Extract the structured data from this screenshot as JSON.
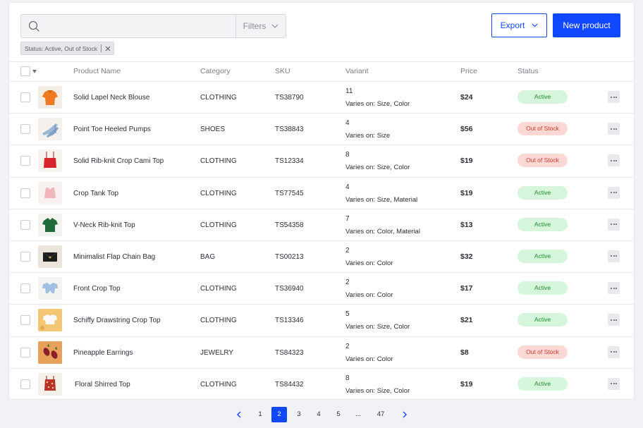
{
  "toolbar": {
    "search_value": "",
    "filters_label": "Filters",
    "active_filter": "Status: Active, Out of Stock",
    "export_label": "Export",
    "new_product_label": "New product"
  },
  "columns": {
    "name": "Product Name",
    "category": "Category",
    "sku": "SKU",
    "variant": "Variant",
    "price": "Price",
    "status": "Status"
  },
  "rows": [
    {
      "name": "Solid Lapel Neck Blouse",
      "category": "CLOTHING",
      "sku": "TS38790",
      "variant_count": "11",
      "variant_note": "Varies on: Size, Color",
      "price": "$24",
      "status": "Active",
      "thumb": "orange-blouse-icon"
    },
    {
      "name": "Point Toe Heeled Pumps",
      "category": "SHOES",
      "sku": "TS38843",
      "variant_count": "4",
      "variant_note": "Varies on: Size",
      "price": "$56",
      "status": "Out of Stock",
      "thumb": "blue-pumps-icon"
    },
    {
      "name": "Solid Rib-knit Crop Cami Top",
      "category": "CLOTHING",
      "sku": "TS12334",
      "variant_count": "8",
      "variant_note": "Varies on: Size, Color",
      "price": "$19",
      "status": "Out of Stock",
      "thumb": "red-cami-icon"
    },
    {
      "name": "Crop Tank Top",
      "category": "CLOTHING",
      "sku": "TS77545",
      "variant_count": "4",
      "variant_note": "Varies on: Size, Material",
      "price": "$19",
      "status": "Active",
      "thumb": "pink-tank-icon"
    },
    {
      "name": "V-Neck Rib-knit Top",
      "category": "CLOTHING",
      "sku": "TS54358",
      "variant_count": "7",
      "variant_note": "Varies on: Color, Material",
      "price": "$13",
      "status": "Active",
      "thumb": "green-tee-icon"
    },
    {
      "name": "Minimalist Flap Chain Bag",
      "category": "BAG",
      "sku": "TS00213",
      "variant_count": "2",
      "variant_note": "Varies on: Color",
      "price": "$32",
      "status": "Active",
      "thumb": "black-bag-icon"
    },
    {
      "name": "Front Crop Top",
      "category": "CLOTHING",
      "sku": "TS36940",
      "variant_count": "2",
      "variant_note": "Varies on: Color",
      "price": "$17",
      "status": "Active",
      "thumb": "blue-crop-icon"
    },
    {
      "name": "Schiffy Drawstring Crop Top",
      "category": "CLOTHING",
      "sku": "TS13346",
      "variant_count": "5",
      "variant_note": "Varies on: Size, Color",
      "price": "$21",
      "status": "Active",
      "thumb": "white-crop-icon"
    },
    {
      "name": "Pineapple Earrings",
      "category": "JEWELRY",
      "sku": "TS84323",
      "variant_count": "2",
      "variant_note": "Varies on: Color",
      "price": "$8",
      "status": "Out of Stock",
      "thumb": "pineapple-earrings-icon"
    },
    {
      "name": "Floral Shirred Top",
      "category": "CLOTHING",
      "sku": "TS84432",
      "variant_count": "8",
      "variant_note": "Varies on: Size, Color",
      "price": "$19",
      "status": "Active",
      "thumb": "floral-top-icon"
    }
  ],
  "pagination": {
    "pages": [
      "1",
      "2",
      "3",
      "4",
      "5",
      "...",
      "47"
    ],
    "current": "2"
  },
  "colors": {
    "primary": "#1148ff",
    "active_bg": "#d5f6db",
    "active_text": "#1f8a2e",
    "oos_bg": "#fbd8d4",
    "oos_text": "#d4372a"
  }
}
